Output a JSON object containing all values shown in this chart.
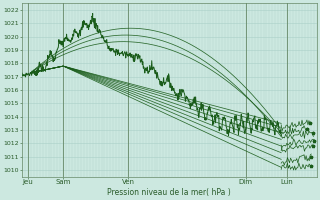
{
  "title": "Pression niveau de la mer( hPa )",
  "ylabel_ticks": [
    1010,
    1011,
    1012,
    1013,
    1014,
    1015,
    1016,
    1017,
    1018,
    1019,
    1020,
    1021,
    1022
  ],
  "ylim": [
    1009.5,
    1022.5
  ],
  "xlim": [
    0,
    100
  ],
  "bg_color": "#cce8e0",
  "grid_color": "#aacfc8",
  "line_color": "#1a5c1a",
  "x_tick_positions": [
    2,
    14,
    36,
    76,
    90
  ],
  "x_tick_labels": [
    "Jeu",
    "Sam",
    "Ven",
    "Dim",
    "Lun"
  ],
  "vline_positions": [
    2,
    14,
    36,
    76,
    90
  ]
}
